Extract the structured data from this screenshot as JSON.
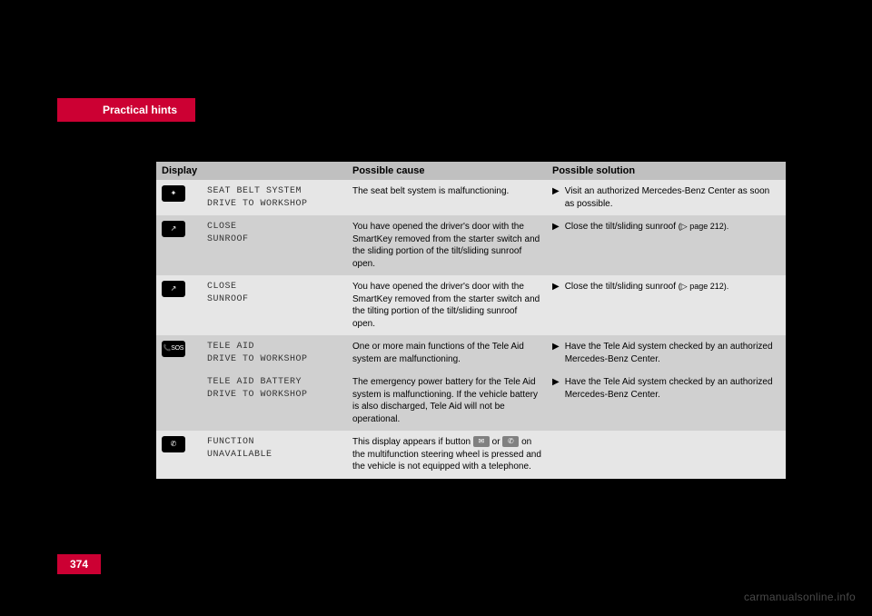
{
  "header": {
    "section": "Practical hints"
  },
  "page_number": "374",
  "watermark": "carmanualsonline.info",
  "table": {
    "columns": [
      "Display",
      "Possible cause",
      "Possible solution"
    ],
    "rows": [
      {
        "shade": "light",
        "icon": "seatbelt",
        "code_lines": [
          "SEAT BELT SYSTEM",
          "DRIVE TO WORKSHOP"
        ],
        "cause": "The seat belt system is malfunctioning.",
        "solution": "Visit an authorized Mercedes-Benz Center as soon as possible.",
        "has_solution_arrow": true
      },
      {
        "shade": "dark",
        "icon": "sunroof",
        "code_lines": [
          "CLOSE",
          "SUNROOF"
        ],
        "cause": "You have opened the driver's door with the SmartKey removed from the starter switch and the sliding portion of the tilt/sliding sunroof open.",
        "solution": "Close the tilt/sliding sunroof",
        "solution_ref": "(▷ page 212).",
        "has_solution_arrow": true
      },
      {
        "shade": "light",
        "icon": "sunroof",
        "code_lines": [
          "CLOSE",
          "SUNROOF"
        ],
        "cause": "You have opened the driver's door with the SmartKey removed from the starter switch and the tilting portion of the tilt/sliding sunroof open.",
        "solution": "Close the tilt/sliding sunroof",
        "solution_ref": "(▷ page 212).",
        "has_solution_arrow": true
      },
      {
        "shade": "dark",
        "icon": "sos",
        "code_lines": [
          "TELE AID",
          "DRIVE TO WORKSHOP"
        ],
        "cause": "One or more main functions of the Tele Aid system are malfunctioning.",
        "solution": "Have the Tele Aid system checked by an authorized Mercedes-Benz Center.",
        "has_solution_arrow": true
      },
      {
        "shade": "dark",
        "icon": "",
        "code_lines": [
          "TELE AID BATTERY",
          "DRIVE TO WORKSHOP"
        ],
        "cause": "The emergency power battery for the Tele Aid system is malfunctioning. If the vehicle battery is also discharged, Tele Aid will not be operational.",
        "solution": "Have the Tele Aid system checked by an authorized Mercedes-Benz Center.",
        "has_solution_arrow": true
      },
      {
        "shade": "light",
        "icon": "phone",
        "code_lines": [
          "FUNCTION",
          "UNAVAILABLE"
        ],
        "cause_parts": {
          "pre": "This display appears if button ",
          "mid": " or ",
          "post": " on the multifunction steering wheel is pressed and the vehicle is not equipped with a telephone."
        },
        "solution": "",
        "has_solution_arrow": false
      }
    ]
  },
  "icon_glyphs": {
    "seatbelt": "✦",
    "sunroof": "↗",
    "sos": "📞SOS",
    "phone": "✆",
    "inline_send": "✉",
    "inline_phone": "✆"
  },
  "colors": {
    "accent": "#cc0033",
    "bg": "#000000",
    "row_light": "#e6e6e6",
    "row_dark": "#d0d0d0",
    "header_row": "#c0c0c0"
  }
}
